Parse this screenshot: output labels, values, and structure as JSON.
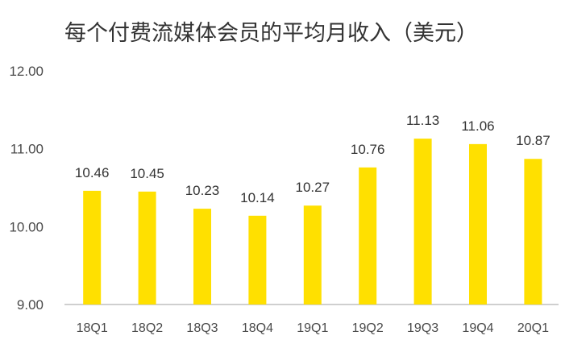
{
  "chart_data": {
    "type": "bar",
    "title": "每个付费流媒体会员的平均月收入（美元）",
    "categories": [
      "18Q1",
      "18Q2",
      "18Q3",
      "18Q4",
      "19Q1",
      "19Q2",
      "19Q3",
      "19Q4",
      "20Q1"
    ],
    "values": [
      10.46,
      10.45,
      10.23,
      10.14,
      10.27,
      10.76,
      11.13,
      11.06,
      10.87
    ],
    "value_labels": [
      "10.46",
      "10.45",
      "10.23",
      "10.14",
      "10.27",
      "10.76",
      "11.13",
      "11.06",
      "10.87"
    ],
    "ylim": [
      9.0,
      12.0
    ],
    "yticks": [
      "9.00",
      "10.00",
      "11.00",
      "12.00"
    ],
    "xlabel": "",
    "ylabel": "",
    "grid": false,
    "bar_color": "#FFE000"
  }
}
